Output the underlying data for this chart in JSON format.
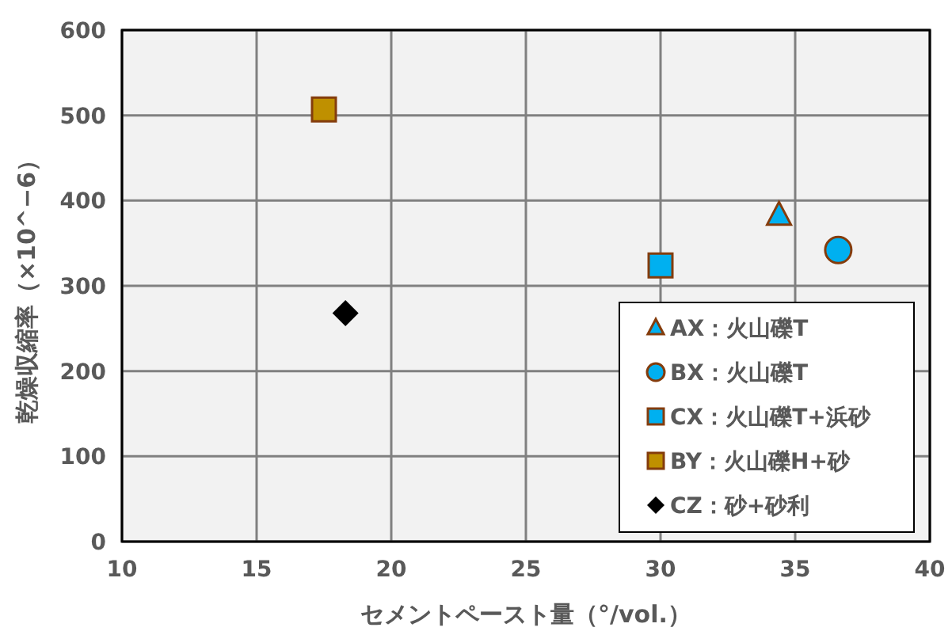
{
  "chart_data": {
    "type": "scatter",
    "xlabel": "セメントペースト量（°/vol.）",
    "ylabel": "乾燥収縮率（×10^−6）",
    "xlim": [
      10,
      40
    ],
    "xticks": [
      10,
      15,
      20,
      25,
      30,
      35,
      40
    ],
    "ylim": [
      0,
      600
    ],
    "yticks": [
      0,
      100,
      200,
      300,
      400,
      500,
      600
    ],
    "grid": true,
    "legend": "bottom right",
    "series": [
      {
        "name": "AX：火山礫T",
        "color": "#00b0f0",
        "marker": "triangle",
        "x": [
          34.4
        ],
        "values": [
          383
        ]
      },
      {
        "name": "BX：火山礫T",
        "color": "#00b0f0",
        "marker": "circle",
        "x": [
          36.6
        ],
        "values": [
          342
        ]
      },
      {
        "name": "CX：火山礫T+浜砂",
        "color": "#00b0f0",
        "marker": "square",
        "x": [
          30.0
        ],
        "values": [
          324
        ]
      },
      {
        "name": "BY：火山礫H+砂",
        "color": "#bf9000",
        "marker": "square",
        "x": [
          17.5
        ],
        "values": [
          507
        ]
      },
      {
        "name": "CZ：砂+砂利",
        "color": "#000000",
        "marker": "diamond",
        "x": [
          18.3
        ],
        "values": [
          268
        ]
      }
    ]
  }
}
